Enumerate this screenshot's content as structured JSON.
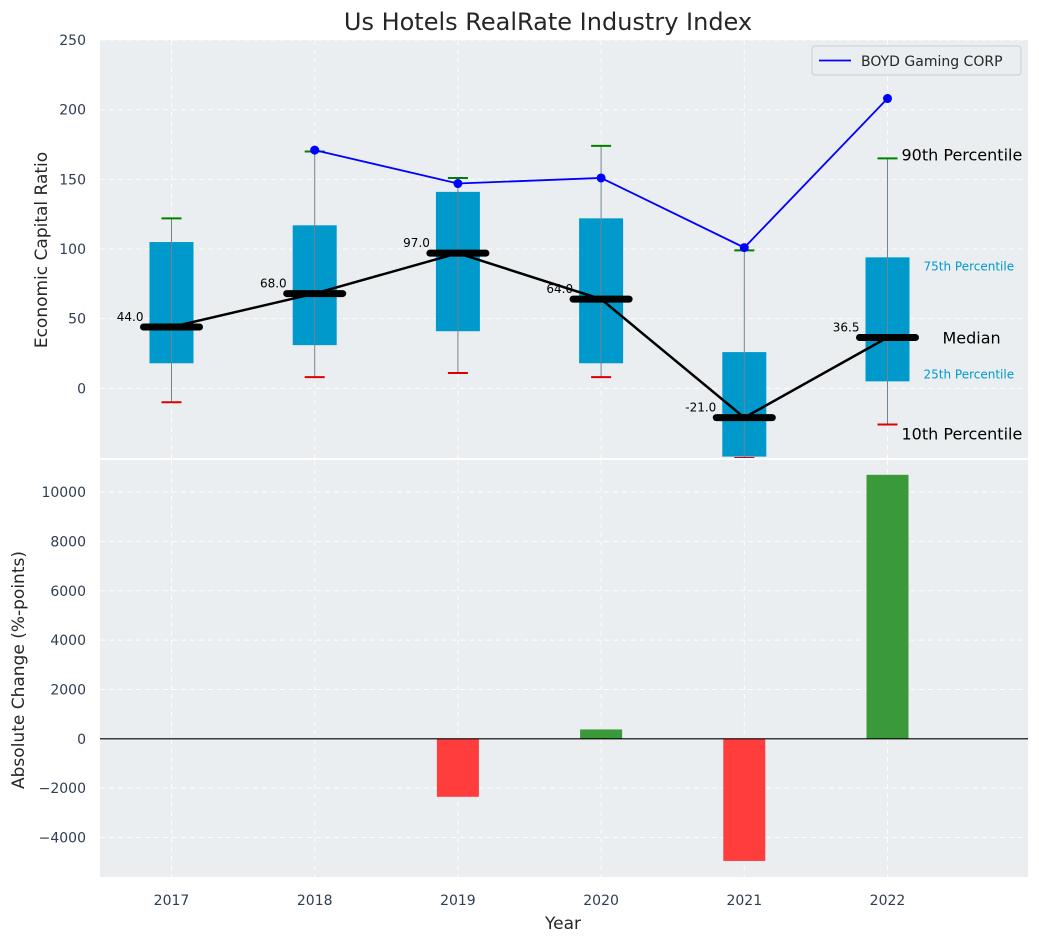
{
  "chart_data": [
    {
      "type": "box",
      "title": "Us Hotels RealRate Industry Index",
      "ylabel": "Economic Capital Ratio",
      "ylim": [
        -50,
        250
      ],
      "yticks": [
        0,
        50,
        100,
        150,
        200,
        250
      ],
      "categories": [
        "2017",
        "2018",
        "2019",
        "2020",
        "2021",
        "2022"
      ],
      "boxes": [
        {
          "p10": -10,
          "p25": 18,
          "median": 44.0,
          "p75": 105,
          "p90": 122,
          "median_label": "44.0"
        },
        {
          "p10": 8,
          "p25": 31,
          "median": 68.0,
          "p75": 117,
          "p90": 170,
          "median_label": "68.0"
        },
        {
          "p10": 11,
          "p25": 41,
          "median": 97.0,
          "p75": 141,
          "p90": 151,
          "median_label": "97.0"
        },
        {
          "p10": 8,
          "p25": 18,
          "median": 64.0,
          "p75": 122,
          "p90": 174,
          "median_label": "64.0"
        },
        {
          "p10": -50,
          "p25": -49,
          "median": -21.0,
          "p75": 26,
          "p90": 99,
          "median_label": "-21.0"
        },
        {
          "p10": -26,
          "p25": 5,
          "median": 36.5,
          "p75": 94,
          "p90": 165,
          "median_label": "36.5"
        }
      ],
      "series": [
        {
          "name": "BOYD Gaming CORP",
          "x": [
            "2018",
            "2019",
            "2020",
            "2021",
            "2022"
          ],
          "values": [
            171,
            147,
            151,
            101,
            208
          ]
        }
      ],
      "annotations": {
        "p90": "90th Percentile",
        "p75": "75th Percentile",
        "median": "Median",
        "p25": "25th Percentile",
        "p10": "10th Percentile"
      },
      "legend": "top-right",
      "grid": true,
      "colors": {
        "box": "#0099cc",
        "series": "#0000ff",
        "median": "#000000",
        "whisker_high": "#008000",
        "whisker_low": "#dd0000",
        "background": "#eaeef0"
      }
    },
    {
      "type": "bar",
      "xlabel": "Year",
      "ylabel": "Absolute Change (%-points)",
      "ylim": [
        -5600,
        11300
      ],
      "yticks": [
        -4000,
        -2000,
        0,
        2000,
        4000,
        6000,
        8000,
        10000
      ],
      "categories": [
        "2017",
        "2018",
        "2019",
        "2020",
        "2021",
        "2022"
      ],
      "values": [
        0,
        0,
        -2350,
        380,
        -4950,
        10700
      ],
      "grid": true,
      "colors": {
        "positive": "#3a9a3a",
        "negative": "#ff3d3d"
      }
    }
  ]
}
